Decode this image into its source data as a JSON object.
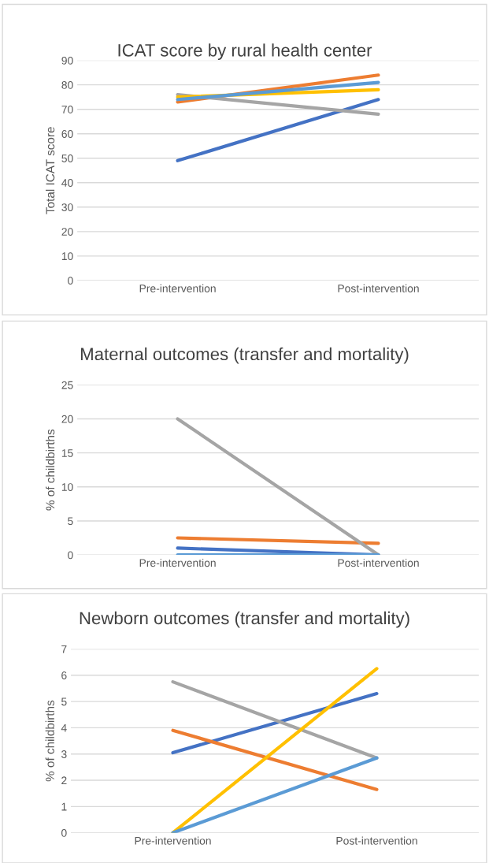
{
  "chart_data": [
    {
      "type": "line",
      "title": "ICAT score by rural health center",
      "ylabel": "Total ICAT score",
      "categories": [
        "Pre-intervention",
        "Post-intervention"
      ],
      "ylim": [
        0,
        90
      ],
      "yticks": [
        0,
        10,
        20,
        30,
        40,
        50,
        60,
        70,
        80,
        90
      ],
      "grid": "y",
      "marker": "none",
      "series": [
        {
          "color": "#4472c4",
          "values": [
            49,
            74
          ]
        },
        {
          "color": "#ed7d31",
          "values": [
            73,
            84
          ]
        },
        {
          "color": "#a5a5a5",
          "values": [
            76,
            68
          ]
        },
        {
          "color": "#ffc000",
          "values": [
            75,
            78
          ]
        },
        {
          "color": "#5b9bd5",
          "values": [
            74,
            81
          ]
        }
      ]
    },
    {
      "type": "line",
      "title": "Maternal outcomes (transfer and mortality)",
      "ylabel": "% of childbirths",
      "categories": [
        "Pre-intervention",
        "Post-intervention"
      ],
      "ylim": [
        0,
        25
      ],
      "yticks": [
        0,
        5,
        10,
        15,
        20,
        25
      ],
      "grid": "y",
      "marker": "none",
      "series": [
        {
          "color": "#4472c4",
          "values": [
            1,
            0
          ]
        },
        {
          "color": "#ed7d31",
          "values": [
            2.5,
            1.7
          ]
        },
        {
          "color": "#a5a5a5",
          "values": [
            20,
            0
          ]
        },
        {
          "color": "#5b9bd5",
          "values": [
            0,
            0
          ]
        }
      ]
    },
    {
      "type": "line",
      "title": "Newborn outcomes (transfer and mortality)",
      "ylabel": "% of childbirths",
      "categories": [
        "Pre-intervention",
        "Post-intervention"
      ],
      "ylim": [
        0,
        7
      ],
      "yticks": [
        0,
        1,
        2,
        3,
        4,
        5,
        6,
        7
      ],
      "grid": "y",
      "marker": "none",
      "series": [
        {
          "color": "#4472c4",
          "values": [
            3.05,
            5.3
          ]
        },
        {
          "color": "#ed7d31",
          "values": [
            3.9,
            1.65
          ]
        },
        {
          "color": "#a5a5a5",
          "values": [
            5.75,
            2.85
          ]
        },
        {
          "color": "#ffc000",
          "values": [
            0,
            6.25
          ]
        },
        {
          "color": "#5b9bd5",
          "values": [
            0,
            2.85
          ]
        }
      ]
    }
  ]
}
